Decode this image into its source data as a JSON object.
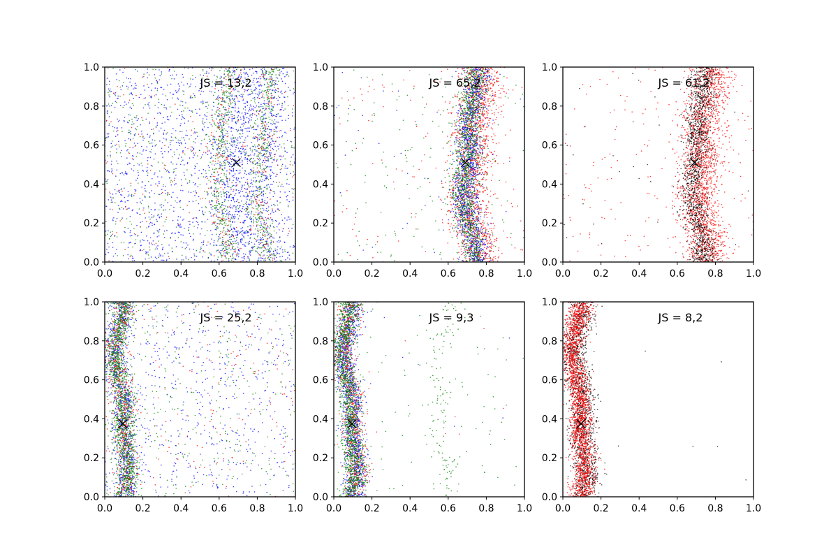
{
  "chart_data": [
    {
      "type": "scatter",
      "annotation": "JS = 13,2",
      "xlim": [
        0,
        1
      ],
      "ylim": [
        0,
        1
      ],
      "xticks": [
        "0.0",
        "0.2",
        "0.4",
        "0.6",
        "0.8",
        "1.0"
      ],
      "yticks": [
        "0.0",
        "0.2",
        "0.4",
        "0.6",
        "0.8",
        "1.0"
      ],
      "grid": false,
      "marker": {
        "x": 0.69,
        "y": 0.51,
        "symbol": "x"
      },
      "series": [
        {
          "color": "#0000ff",
          "bands": [
            {
              "center": 0.7,
              "width": 0.06,
              "share": 0.25
            },
            {
              "center": 0.86,
              "width": 0.04,
              "share": 0.1
            }
          ],
          "background": 0.65,
          "count": 2200
        },
        {
          "color": "#008000",
          "bands": [
            {
              "center": 0.62,
              "width": 0.03,
              "share": 0.3
            },
            {
              "center": 0.83,
              "width": 0.03,
              "share": 0.3
            }
          ],
          "background": 0.4,
          "count": 1300
        },
        {
          "color": "#ff0000",
          "bands": [
            {
              "center": 0.62,
              "width": 0.03,
              "share": 0.3
            },
            {
              "center": 0.83,
              "width": 0.03,
              "share": 0.3
            }
          ],
          "background": 0.4,
          "count": 450
        }
      ]
    },
    {
      "type": "scatter",
      "annotation": "JS = 65,2",
      "xlim": [
        0,
        1
      ],
      "ylim": [
        0,
        1
      ],
      "xticks": [
        "0.0",
        "0.2",
        "0.4",
        "0.6",
        "0.8",
        "1.0"
      ],
      "yticks": [
        "0.0",
        "0.2",
        "0.4",
        "0.6",
        "0.8",
        "1.0"
      ],
      "grid": false,
      "marker": {
        "x": 0.69,
        "y": 0.51,
        "symbol": "x"
      },
      "series": [
        {
          "color": "#ff0000",
          "bands": [
            {
              "center": 0.74,
              "width": 0.055,
              "share": 0.93
            }
          ],
          "background": 0.07,
          "count": 1800
        },
        {
          "color": "#0000ff",
          "bands": [
            {
              "center": 0.72,
              "width": 0.035,
              "share": 0.97
            }
          ],
          "background": 0.03,
          "count": 1300
        },
        {
          "color": "#008000",
          "bands": [
            {
              "center": 0.71,
              "width": 0.035,
              "share": 0.88
            }
          ],
          "background": 0.12,
          "count": 1400
        }
      ]
    },
    {
      "type": "scatter",
      "annotation": "JS = 61,2",
      "xlim": [
        0,
        1
      ],
      "ylim": [
        0,
        1
      ],
      "xticks": [
        "0.0",
        "0.2",
        "0.4",
        "0.6",
        "0.8",
        "1.0"
      ],
      "yticks": [
        "0.0",
        "0.2",
        "0.4",
        "0.6",
        "0.8",
        "1.0"
      ],
      "grid": false,
      "marker": {
        "x": 0.69,
        "y": 0.51,
        "symbol": "x"
      },
      "series": [
        {
          "color": "#ff0000",
          "bands": [
            {
              "center": 0.74,
              "width": 0.055,
              "share": 0.92
            }
          ],
          "background": 0.08,
          "count": 2200
        },
        {
          "color": "#000000",
          "bands": [
            {
              "center": 0.71,
              "width": 0.035,
              "share": 0.97
            }
          ],
          "background": 0.03,
          "count": 1300
        }
      ]
    },
    {
      "type": "scatter",
      "annotation": "JS = 25,2",
      "xlim": [
        0,
        1
      ],
      "ylim": [
        0,
        1
      ],
      "xticks": [
        "0.0",
        "0.2",
        "0.4",
        "0.6",
        "0.8",
        "1.0"
      ],
      "yticks": [
        "0.0",
        "0.2",
        "0.4",
        "0.6",
        "0.8",
        "1.0"
      ],
      "grid": false,
      "marker": {
        "x": 0.095,
        "y": 0.375,
        "symbol": "x"
      },
      "series": [
        {
          "color": "#0000ff",
          "bands": [
            {
              "center": 0.09,
              "width": 0.03,
              "share": 0.6
            }
          ],
          "background": 0.4,
          "count": 1500
        },
        {
          "color": "#ff0000",
          "bands": [
            {
              "center": 0.09,
              "width": 0.03,
              "share": 0.78
            }
          ],
          "background": 0.22,
          "count": 800
        },
        {
          "color": "#008000",
          "bands": [
            {
              "center": 0.09,
              "width": 0.03,
              "share": 0.82
            }
          ],
          "background": 0.18,
          "count": 1700
        }
      ]
    },
    {
      "type": "scatter",
      "annotation": "JS = 9,3",
      "xlim": [
        0,
        1
      ],
      "ylim": [
        0,
        1
      ],
      "xticks": [
        "0.0",
        "0.2",
        "0.4",
        "0.6",
        "0.8",
        "1.0"
      ],
      "yticks": [
        "0.0",
        "0.2",
        "0.4",
        "0.6",
        "0.8",
        "1.0"
      ],
      "grid": false,
      "marker": {
        "x": 0.095,
        "y": 0.375,
        "symbol": "x"
      },
      "series": [
        {
          "color": "#0000ff",
          "bands": [
            {
              "center": 0.09,
              "width": 0.03,
              "share": 0.99
            }
          ],
          "background": 0.01,
          "count": 1300
        },
        {
          "color": "#ff0000",
          "bands": [
            {
              "center": 0.09,
              "width": 0.03,
              "share": 0.99
            }
          ],
          "background": 0.01,
          "count": 800
        },
        {
          "color": "#008000",
          "bands": [
            {
              "center": 0.08,
              "width": 0.03,
              "share": 0.88
            },
            {
              "center": 0.57,
              "width": 0.03,
              "share": 0.07
            }
          ],
          "background": 0.05,
          "count": 1700
        }
      ]
    },
    {
      "type": "scatter",
      "annotation": "JS = 8,2",
      "xlim": [
        0,
        1
      ],
      "ylim": [
        0,
        1
      ],
      "xticks": [
        "0.0",
        "0.2",
        "0.4",
        "0.6",
        "0.8",
        "1.0"
      ],
      "yticks": [
        "0.0",
        "0.2",
        "0.4",
        "0.6",
        "0.8",
        "1.0"
      ],
      "grid": false,
      "marker": {
        "x": 0.095,
        "y": 0.375,
        "symbol": "x"
      },
      "series": [
        {
          "color": "#000000",
          "bands": [
            {
              "center": 0.095,
              "width": 0.035,
              "share": 0.995
            }
          ],
          "background": 0.005,
          "count": 1500
        },
        {
          "color": "#ff0000",
          "bands": [
            {
              "center": 0.085,
              "width": 0.03,
              "share": 1.0
            }
          ],
          "background": 0.0,
          "count": 2200
        }
      ]
    }
  ]
}
